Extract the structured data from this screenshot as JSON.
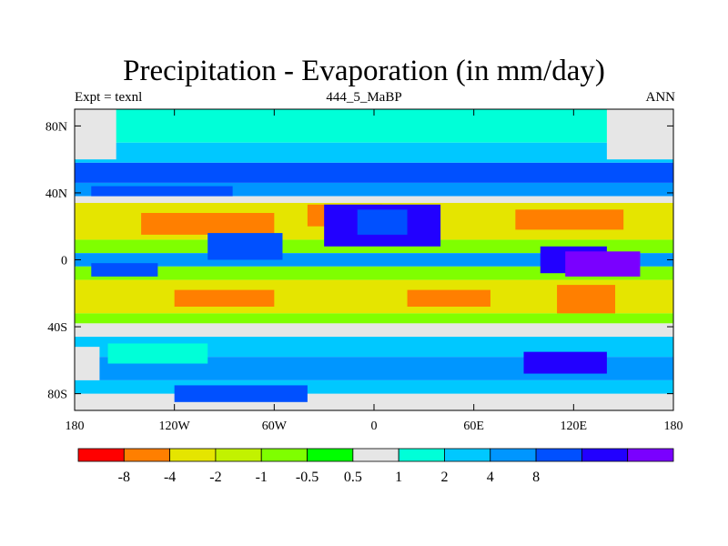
{
  "chart_data": {
    "type": "heatmap",
    "title": "Precipitation - Evaporation (in mm/day)",
    "subtitle_left": "Expt = texnl",
    "subtitle_center": "444_5_MaBP",
    "subtitle_right": "ANN",
    "x_ticks": [
      {
        "value": -180,
        "label": "180"
      },
      {
        "value": -120,
        "label": "120W"
      },
      {
        "value": -60,
        "label": "60W"
      },
      {
        "value": 0,
        "label": "0"
      },
      {
        "value": 60,
        "label": "60E"
      },
      {
        "value": 120,
        "label": "120E"
      },
      {
        "value": 180,
        "label": "180"
      }
    ],
    "y_ticks": [
      {
        "value": 80,
        "label": "80N"
      },
      {
        "value": 40,
        "label": "40N"
      },
      {
        "value": 0,
        "label": "0"
      },
      {
        "value": -40,
        "label": "40S"
      },
      {
        "value": -80,
        "label": "80S"
      }
    ],
    "xlim": [
      -180,
      180
    ],
    "ylim": [
      -90,
      90
    ],
    "levels": [
      "-8",
      "-4",
      "-2",
      "-1",
      "-0.5",
      "0.5",
      "1",
      "2",
      "4",
      "8"
    ],
    "colors": [
      "#ff0000",
      "#ff7f00",
      "#e5e500",
      "#c2f200",
      "#7fff00",
      "#00ff00",
      "#e6e6e6",
      "#00ffd8",
      "#00c8ff",
      "#0096ff",
      "#0050ff",
      "#2200ff",
      "#7a00ff"
    ],
    "zonal_bands": [
      {
        "lat": [
          70,
          90
        ],
        "class": 7
      },
      {
        "lat": [
          58,
          70
        ],
        "class": 8
      },
      {
        "lat": [
          46,
          58
        ],
        "class": 10
      },
      {
        "lat": [
          38,
          46
        ],
        "class": 9
      },
      {
        "lat": [
          34,
          38
        ],
        "class": 6
      },
      {
        "lat": [
          12,
          34
        ],
        "class": 2
      },
      {
        "lat": [
          4,
          12
        ],
        "class": 4
      },
      {
        "lat": [
          -4,
          4
        ],
        "class": 9
      },
      {
        "lat": [
          -12,
          -4
        ],
        "class": 4
      },
      {
        "lat": [
          -32,
          -12
        ],
        "class": 2
      },
      {
        "lat": [
          -38,
          -32
        ],
        "class": 4
      },
      {
        "lat": [
          -46,
          -38
        ],
        "class": 6
      },
      {
        "lat": [
          -58,
          -46
        ],
        "class": 8
      },
      {
        "lat": [
          -72,
          -58
        ],
        "class": 9
      },
      {
        "lat": [
          -82,
          -72
        ],
        "class": 8
      },
      {
        "lat": [
          -90,
          -82
        ],
        "class": 6
      }
    ],
    "features": [
      {
        "lon": [
          -180,
          -155
        ],
        "lat": [
          60,
          90
        ],
        "class": 6
      },
      {
        "lon": [
          140,
          180
        ],
        "lat": [
          60,
          90
        ],
        "class": 6
      },
      {
        "lon": [
          -170,
          -85
        ],
        "lat": [
          38,
          44
        ],
        "class": 10
      },
      {
        "lon": [
          -140,
          -60
        ],
        "lat": [
          15,
          28
        ],
        "class": 1
      },
      {
        "lon": [
          -40,
          5
        ],
        "lat": [
          20,
          33
        ],
        "class": 1
      },
      {
        "lon": [
          85,
          150
        ],
        "lat": [
          18,
          30
        ],
        "class": 1
      },
      {
        "lon": [
          -100,
          -55
        ],
        "lat": [
          0,
          16
        ],
        "class": 10
      },
      {
        "lon": [
          -30,
          40
        ],
        "lat": [
          8,
          33
        ],
        "class": 11
      },
      {
        "lon": [
          -10,
          20
        ],
        "lat": [
          15,
          30
        ],
        "class": 10
      },
      {
        "lon": [
          100,
          140
        ],
        "lat": [
          -8,
          8
        ],
        "class": 11
      },
      {
        "lon": [
          115,
          160
        ],
        "lat": [
          -10,
          5
        ],
        "class": 12
      },
      {
        "lon": [
          -170,
          -130
        ],
        "lat": [
          -10,
          -2
        ],
        "class": 10
      },
      {
        "lon": [
          -120,
          -60
        ],
        "lat": [
          -28,
          -18
        ],
        "class": 1
      },
      {
        "lon": [
          20,
          70
        ],
        "lat": [
          -28,
          -18
        ],
        "class": 1
      },
      {
        "lon": [
          110,
          145
        ],
        "lat": [
          -32,
          -15
        ],
        "class": 1
      },
      {
        "lon": [
          -180,
          180
        ],
        "lat": [
          -90,
          -80
        ],
        "class": 6
      },
      {
        "lon": [
          -120,
          -40
        ],
        "lat": [
          -85,
          -75
        ],
        "class": 10
      },
      {
        "lon": [
          90,
          140
        ],
        "lat": [
          -68,
          -55
        ],
        "class": 11
      },
      {
        "lon": [
          -160,
          -100
        ],
        "lat": [
          -62,
          -50
        ],
        "class": 7
      },
      {
        "lon": [
          -180,
          -165
        ],
        "lat": [
          -72,
          -52
        ],
        "class": 6
      }
    ]
  }
}
